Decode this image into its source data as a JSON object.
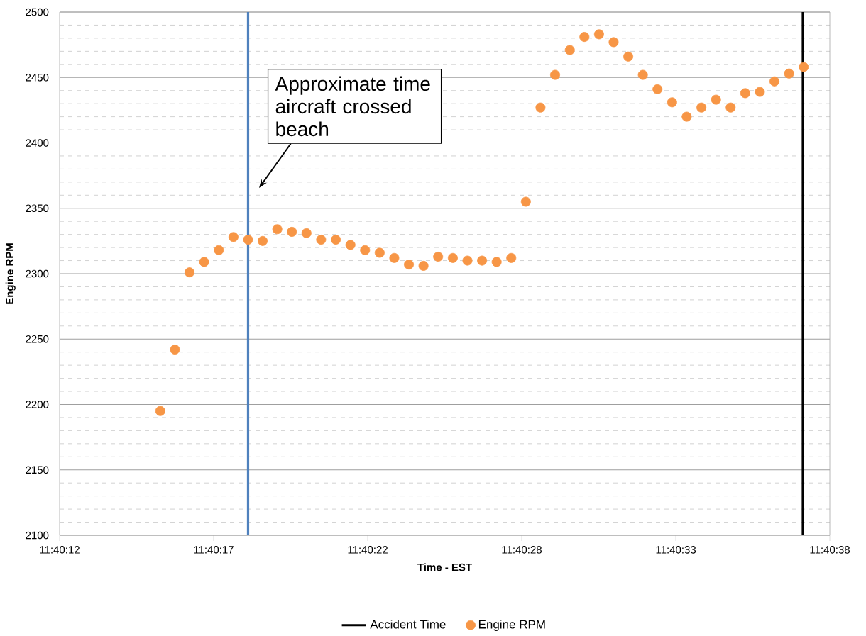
{
  "chart_data": {
    "type": "scatter",
    "xlabel": "Time - EST",
    "ylabel": "Engine RPM",
    "xlim": [
      11.67,
      11.677222
    ],
    "xticks": [
      {
        "value": 11.67,
        "label": "11:40:12"
      },
      {
        "value": 11.671444,
        "label": "11:40:17"
      },
      {
        "value": 11.672889,
        "label": "11:40:22"
      },
      {
        "value": 11.674333,
        "label": "11:40:28"
      },
      {
        "value": 11.675778,
        "label": "11:40:33"
      },
      {
        "value": 11.677222,
        "label": "11:40:38"
      }
    ],
    "ylim": [
      2100,
      2500
    ],
    "yticks": [
      2100,
      2150,
      2200,
      2250,
      2300,
      2350,
      2400,
      2450,
      2500
    ],
    "grid": "y",
    "legend": "bottom",
    "marker": "circle",
    "x": [
      11.670944,
      11.671081,
      11.671218,
      11.671355,
      11.671493,
      11.67163,
      11.671767,
      11.671904,
      11.672041,
      11.672178,
      11.672315,
      11.672452,
      11.67259,
      11.672727,
      11.672864,
      11.673001,
      11.673138,
      11.673275,
      11.673412,
      11.673549,
      11.673687,
      11.673824,
      11.673961,
      11.674098,
      11.674235,
      11.674372,
      11.674509,
      11.674646,
      11.674784,
      11.674921,
      11.675058,
      11.675195,
      11.675332,
      11.675469,
      11.675606,
      11.675743,
      11.67588,
      11.676018,
      11.676155,
      11.676292,
      11.676429,
      11.676566,
      11.676703,
      11.67684,
      11.676977
    ],
    "series": [
      {
        "name": "Engine RPM",
        "color": "#f79646",
        "values": [
          2195,
          2242,
          2301,
          2309,
          2318,
          2328,
          2326,
          2325,
          2334,
          2332,
          2331,
          2326,
          2326,
          2322,
          2318,
          2316,
          2312,
          2307,
          2306,
          2313,
          2312,
          2310,
          2310,
          2309,
          2312,
          2355,
          2427,
          2452,
          2471,
          2481,
          2483,
          2477,
          2466,
          2452,
          2441,
          2431,
          2420,
          2427,
          2433,
          2427,
          2438,
          2439,
          2447,
          2453,
          2458
        ]
      }
    ],
    "ref_lines": [
      {
        "axis": "x",
        "value": 11.671767,
        "color": "#4f81bd"
      },
      {
        "axis": "x",
        "value": 11.676969,
        "label": "Accident Time",
        "color": "#000000"
      }
    ],
    "annotations": [
      "Approximate time aircraft crossed beach"
    ]
  }
}
